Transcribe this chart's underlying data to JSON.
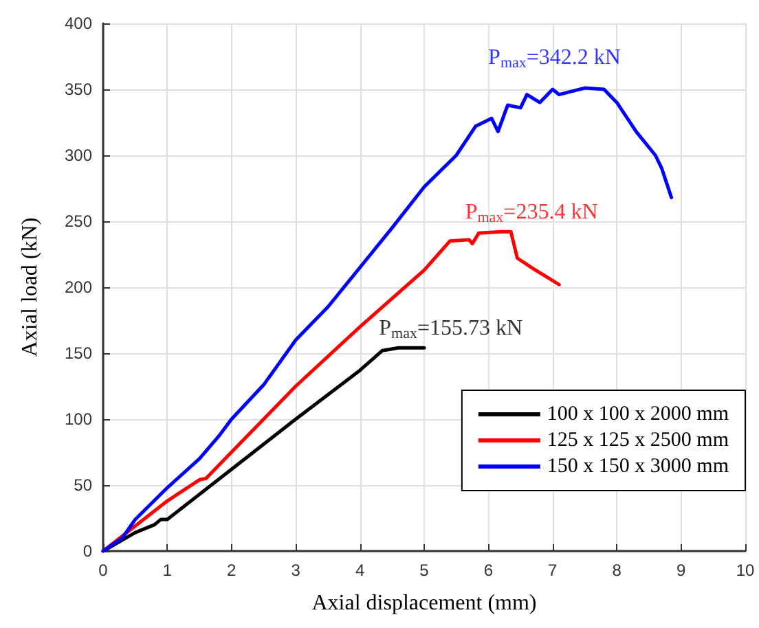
{
  "chart_data": {
    "type": "line",
    "xlabel": "Axial displacement (mm)",
    "ylabel": "Axial load (kN)",
    "xlim": [
      0,
      10
    ],
    "xticks": [
      0,
      1,
      2,
      3,
      4,
      5,
      6,
      7,
      8,
      9,
      10
    ],
    "ylim": [
      0,
      400
    ],
    "yticks": [
      0,
      50,
      100,
      150,
      200,
      250,
      300,
      350,
      400
    ],
    "grid": true,
    "legend": "bottom right",
    "marker": "none",
    "line_style": "solid",
    "series": [
      {
        "name": "100 x 100 x 2000 mm",
        "color": "#000000",
        "x": [
          0,
          0.5,
          0.8,
          0.9,
          1.0,
          2,
          3,
          4,
          4.35,
          4.6,
          5
        ],
        "values": [
          0,
          14,
          20,
          24,
          24,
          62,
          100,
          137,
          152,
          154,
          154
        ]
      },
      {
        "name": "125 x 125 x 2500 mm",
        "color": "#ff0000",
        "x": [
          0,
          0.5,
          1,
          1.5,
          1.6,
          2,
          3,
          4,
          5,
          5.4,
          5.7,
          5.75,
          5.85,
          6.2,
          6.35,
          6.45,
          6.7,
          7.1
        ],
        "values": [
          0,
          19,
          38,
          54,
          55,
          75,
          125,
          170,
          213,
          235,
          236,
          233,
          241,
          242,
          242,
          222,
          214,
          202
        ]
      },
      {
        "name": "150 x 150 x 3000 mm",
        "color": "#0000ff",
        "x": [
          0,
          0.3,
          0.5,
          1,
          1.5,
          1.8,
          2,
          2.5,
          3,
          3.5,
          4,
          4.5,
          5,
          5.5,
          5.8,
          6.05,
          6.15,
          6.3,
          6.5,
          6.6,
          6.8,
          7,
          7.1,
          7.5,
          7.8,
          8.0,
          8.3,
          8.6,
          8.7,
          8.85
        ],
        "values": [
          0,
          10,
          24,
          48,
          70,
          87,
          100,
          126,
          160,
          185,
          215,
          245,
          276,
          300,
          322,
          328,
          318,
          338,
          336,
          346,
          340,
          350,
          346,
          351,
          350,
          340,
          318,
          300,
          290,
          268
        ]
      }
    ],
    "annotations": [
      "P$_{max}$=155.73 kN",
      "P$_{max}$=235.4 kN",
      "P$_{max}$=342.2 kN"
    ]
  }
}
